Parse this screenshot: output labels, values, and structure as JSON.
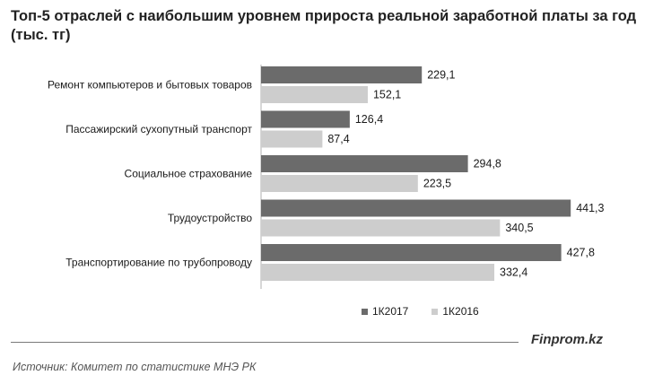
{
  "chart_data": {
    "type": "bar",
    "orientation": "horizontal",
    "title": "Топ-5 отраслей с наибольшим  уровнем прироста реальной заработной платы за год (тыс. тг)",
    "categories": [
      "Ремонт компьютеров и бытовых товаров",
      "Пассажирский сухопутный транспорт",
      "Социальное страхование",
      "Трудоустройство",
      "Транспортирование по трубопроводу"
    ],
    "series": [
      {
        "name": "1К2017",
        "color": "#6b6b6b",
        "values": [
          229.1,
          126.4,
          294.8,
          441.3,
          427.8
        ],
        "labels": [
          "229,1",
          "126,4",
          "294,8",
          "441,3",
          "427,8"
        ]
      },
      {
        "name": "1К2016",
        "color": "#cdcdcd",
        "values": [
          152.1,
          87.4,
          223.5,
          340.5,
          332.4
        ],
        "labels": [
          "152,1",
          "87,4",
          "223,5",
          "340,5",
          "332,4"
        ]
      }
    ],
    "xlim": [
      0,
      450
    ],
    "grid": false,
    "legend": "bottom"
  },
  "brand": "Finprom.kz",
  "source": "Источник:  Комитет по статистике МНЭ РК"
}
